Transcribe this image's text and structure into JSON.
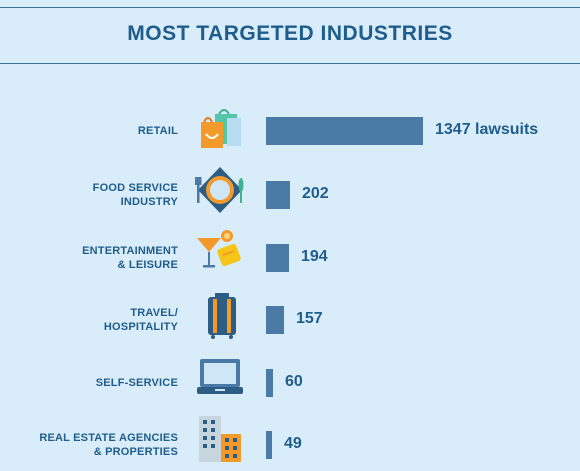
{
  "title": "MOST TARGETED INDUSTRIES",
  "chart_data": {
    "type": "bar",
    "orientation": "horizontal",
    "title": "MOST TARGETED INDUSTRIES",
    "categories": [
      "RETAIL",
      "FOOD SERVICE\nINDUSTRY",
      "ENTERTAINMENT\n& LEISURE",
      "TRAVEL/\nHOSPITALITY",
      "SELF-SERVICE",
      "REAL ESTATE AGENCIES\n& PROPERTIES"
    ],
    "values": [
      1347,
      202,
      194,
      157,
      60,
      49
    ],
    "value_labels": [
      "1347 lawsuits",
      "202",
      "194",
      "157",
      "60",
      "49"
    ],
    "icons": [
      "shopping-bags-icon",
      "dinner-plate-icon",
      "cocktail-tickets-icon",
      "suitcase-icon",
      "laptop-icon",
      "buildings-icon"
    ],
    "colors": {
      "bar": "#4a7aa6",
      "text": "#1f5d8c",
      "background": "#d9ecf9"
    }
  }
}
